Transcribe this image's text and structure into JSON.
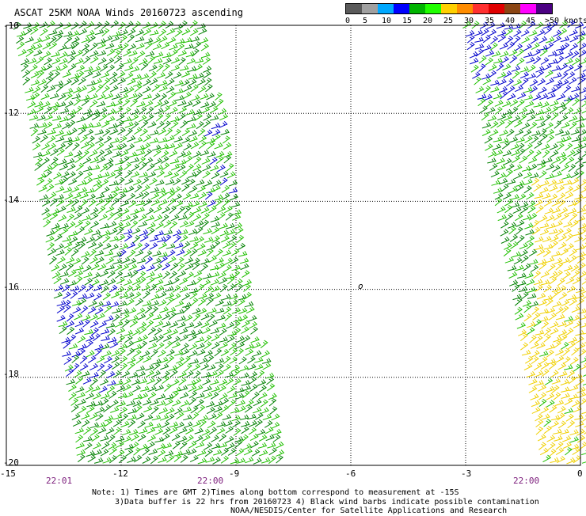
{
  "title": "ASCAT 25KM NOAA Winds 20160723 ascending",
  "legend": {
    "colors": [
      "#5a5a5a",
      "#a0a0a0",
      "#00a8ff",
      "#0000ff",
      "#00b400",
      "#20ff00",
      "#ffd000",
      "#ff8c00",
      "#ff3030",
      "#e00000",
      "#8b4513",
      "#ff00ff",
      "#4b0082"
    ],
    "labels": [
      "0",
      "5",
      "10",
      "15",
      "20",
      "25",
      "30",
      "35",
      "40",
      "45",
      ">50 knots"
    ]
  },
  "y_axis_labels": [
    "-10",
    "-12",
    "-14",
    "-16",
    "-18",
    "-20"
  ],
  "x_axis_labels": [
    "-15",
    "-12",
    "-9",
    "-6",
    "-3",
    "0"
  ],
  "pass_times": [
    "22:01",
    "22:00",
    "22:00"
  ],
  "center_marker": "o",
  "notes": {
    "line1": "Note: 1) Times are GMT 2)Times along bottom correspond to measurement at -15S",
    "line2": "3)Data buffer is 22 hrs from 20160723 4) Black wind barbs indicate possible contamination",
    "line3": "NOAA/NESDIS/Center for Satellite Applications and Research"
  },
  "wind_colors": {
    "light_green": "#20c000",
    "dark_green": "#008000",
    "blue": "#0000cc",
    "yellow": "#f0d000"
  }
}
